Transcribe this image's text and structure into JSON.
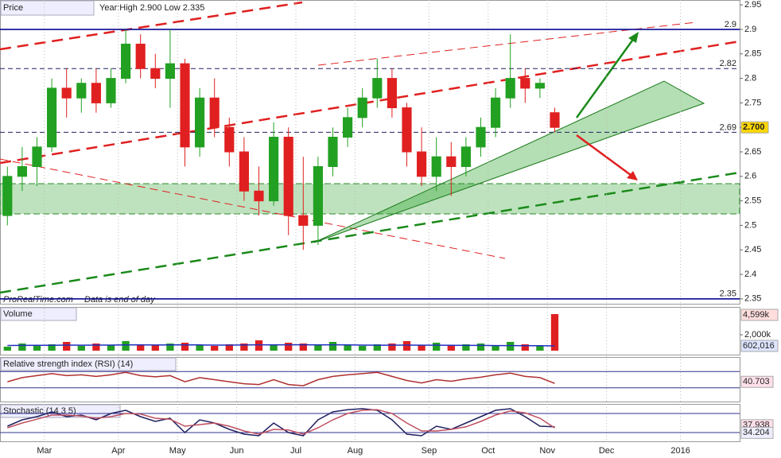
{
  "chart_data": [
    {
      "type": "candlestick",
      "title": "Price",
      "subtitle": "Year:High 2.900 Low 2.335",
      "source": "ProRealTime.com",
      "note": "Data is end of day",
      "categories": [
        null,
        null,
        null,
        "Mar",
        null,
        null,
        null,
        null,
        "Apr",
        null,
        null,
        null,
        "May",
        null,
        null,
        null,
        "Jun",
        null,
        null,
        null,
        "Jul",
        null,
        null,
        null,
        "Aug",
        null,
        null,
        null,
        null,
        "Sep",
        null,
        null,
        null,
        "Oct",
        null,
        null,
        null,
        "Nov",
        null,
        null,
        null,
        "Dec",
        null,
        null,
        null,
        null,
        "2016",
        null,
        null,
        null
      ],
      "open": [
        2.52,
        2.6,
        2.62,
        2.66,
        2.78,
        2.76,
        2.79,
        2.75,
        2.8,
        2.87,
        2.82,
        2.8,
        2.83,
        2.66,
        2.76,
        2.7,
        2.65,
        2.57,
        2.55,
        2.68,
        2.52,
        2.5,
        2.62,
        2.68,
        2.72,
        2.76,
        2.8,
        2.74,
        2.65,
        2.6,
        2.64,
        2.62,
        2.66,
        2.7,
        2.76,
        2.8,
        2.78,
        2.73,
        null,
        null,
        null,
        null,
        null,
        null,
        null,
        null,
        null,
        null,
        null,
        null
      ],
      "high": [
        2.62,
        2.66,
        2.68,
        2.8,
        2.82,
        2.8,
        2.82,
        2.82,
        2.9,
        2.89,
        2.85,
        2.9,
        2.84,
        2.78,
        2.8,
        2.72,
        2.68,
        2.62,
        2.71,
        2.7,
        2.64,
        2.64,
        2.7,
        2.74,
        2.78,
        2.84,
        2.82,
        2.75,
        2.7,
        2.68,
        2.67,
        2.68,
        2.72,
        2.78,
        2.89,
        2.82,
        2.8,
        2.74,
        null,
        null,
        null,
        null,
        null,
        null,
        null,
        null,
        null,
        null,
        null,
        null
      ],
      "low": [
        2.5,
        2.57,
        2.58,
        2.65,
        2.72,
        2.73,
        2.73,
        2.74,
        2.79,
        2.8,
        2.78,
        2.74,
        2.62,
        2.64,
        2.68,
        2.62,
        2.55,
        2.52,
        2.54,
        2.48,
        2.45,
        2.46,
        2.6,
        2.66,
        2.7,
        2.74,
        2.72,
        2.62,
        2.58,
        2.57,
        2.56,
        2.6,
        2.64,
        2.68,
        2.74,
        2.75,
        2.76,
        2.69,
        null,
        null,
        null,
        null,
        null,
        null,
        null,
        null,
        null,
        null,
        null,
        null
      ],
      "close": [
        2.6,
        2.62,
        2.66,
        2.78,
        2.76,
        2.79,
        2.75,
        2.8,
        2.87,
        2.82,
        2.8,
        2.83,
        2.66,
        2.76,
        2.7,
        2.65,
        2.57,
        2.55,
        2.68,
        2.52,
        2.5,
        2.62,
        2.68,
        2.72,
        2.76,
        2.8,
        2.74,
        2.65,
        2.6,
        2.64,
        2.62,
        2.66,
        2.7,
        2.76,
        2.8,
        2.78,
        2.79,
        2.7,
        null,
        null,
        null,
        null,
        null,
        null,
        null,
        null,
        null,
        null,
        null,
        null
      ],
      "last_price": {
        "value": 2.7,
        "label": "2.700"
      },
      "up_color": "#22a022",
      "down_color": "#e02020",
      "levels": [
        2.9,
        2.82,
        2.69,
        2.35
      ],
      "ylim": [
        2.34,
        2.96
      ],
      "yticks": [
        2.95,
        2.9,
        2.85,
        2.8,
        2.75,
        2.7,
        2.65,
        2.6,
        2.55,
        2.5,
        2.45,
        2.4,
        2.35
      ]
    },
    {
      "type": "bar",
      "title": "Volume",
      "series": [
        {
          "name": "Volume",
          "color": "#22a022",
          "values": [
            500000,
            900000,
            700000,
            800000,
            1100000,
            600000,
            900000,
            700000,
            1200000,
            800000,
            700000,
            900000,
            1000000,
            700000,
            600000,
            800000,
            900000,
            1300000,
            700000,
            1000000,
            900000,
            800000,
            1100000,
            700000,
            600000,
            800000,
            900000,
            1200000,
            700000,
            1000000,
            600000,
            800000,
            900000,
            700000,
            1100000,
            800000,
            600000,
            4599000
          ],
          "value_labels": [
            null,
            null,
            null,
            null,
            null,
            null,
            null,
            null,
            null,
            null,
            null,
            null,
            null,
            null,
            null,
            null,
            null,
            null,
            null,
            null,
            null,
            null,
            null,
            null,
            null,
            null,
            null,
            null,
            null,
            null,
            null,
            null,
            null,
            null,
            null,
            null,
            null,
            "4,599k"
          ]
        },
        {
          "name": "Average",
          "color": "#2030c0",
          "values": [
            650000,
            660000,
            670000,
            680000,
            700000,
            690000,
            700000,
            700000,
            720000,
            720000,
            710000,
            720000,
            730000,
            720000,
            700000,
            700000,
            710000,
            740000,
            730000,
            740000,
            740000,
            730000,
            740000,
            720000,
            700000,
            690000,
            690000,
            700000,
            690000,
            690000,
            670000,
            660000,
            660000,
            640000,
            640000,
            630000,
            620000,
            602016
          ],
          "value_labels": [
            null,
            null,
            null,
            null,
            null,
            null,
            null,
            null,
            null,
            null,
            null,
            null,
            null,
            null,
            null,
            null,
            null,
            null,
            null,
            null,
            null,
            null,
            null,
            null,
            null,
            null,
            null,
            null,
            null,
            null,
            null,
            null,
            null,
            null,
            null,
            null,
            null,
            "602,016"
          ]
        }
      ],
      "ylim": [
        0,
        5200000
      ],
      "yticks": [
        {
          "value": 2000000,
          "label": "2,000k"
        }
      ]
    },
    {
      "type": "line",
      "title": "Relative strength index (RSI) (14)",
      "series": [
        {
          "name": "RSI",
          "color": "#b03030",
          "values": [
            45,
            55,
            60,
            65,
            60,
            62,
            58,
            62,
            68,
            60,
            57,
            60,
            45,
            55,
            50,
            45,
            40,
            38,
            50,
            38,
            35,
            50,
            58,
            62,
            65,
            68,
            58,
            48,
            42,
            50,
            46,
            52,
            56,
            62,
            66,
            58,
            55,
            40.703
          ]
        }
      ],
      "levels": [
        30,
        70
      ],
      "ylim": [
        0,
        100
      ]
    },
    {
      "type": "line",
      "title": "Stochastic (14 3 5)",
      "series": [
        {
          "name": "%K",
          "color": "#202060",
          "values": [
            40,
            60,
            70,
            85,
            70,
            75,
            60,
            80,
            90,
            70,
            55,
            65,
            20,
            60,
            50,
            30,
            15,
            10,
            50,
            20,
            10,
            60,
            85,
            92,
            95,
            90,
            60,
            15,
            10,
            40,
            30,
            50,
            70,
            90,
            95,
            70,
            40,
            37.938
          ]
        },
        {
          "name": "%D",
          "color": "#c05060",
          "values": [
            35,
            50,
            62,
            75,
            75,
            72,
            65,
            70,
            80,
            78,
            65,
            62,
            40,
            45,
            50,
            40,
            25,
            15,
            30,
            28,
            15,
            35,
            60,
            80,
            90,
            92,
            80,
            50,
            25,
            25,
            30,
            38,
            55,
            75,
            88,
            82,
            65,
            34.204
          ]
        }
      ],
      "levels": [
        20,
        80
      ],
      "ylim": [
        0,
        100
      ]
    }
  ]
}
